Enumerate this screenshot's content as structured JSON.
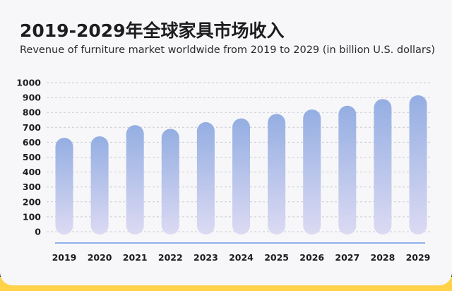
{
  "header": {
    "title": "2019-2029年全球家具市场收入",
    "subtitle": "Revenue of furniture market worldwide from 2019 to 2029 (in billion U.S. dollars)"
  },
  "colors": {
    "bar_top": "#94aee2",
    "bar_bottom": "#dcdaf3",
    "gridline": "#c9ccd6",
    "baseline": "#8fb3ea",
    "accent_orange": "#ff8a1c",
    "accent_yellow": "#ffd24a"
  },
  "chart_data": {
    "type": "bar",
    "categories": [
      "2019",
      "2020",
      "2021",
      "2022",
      "2023",
      "2024",
      "2025",
      "2026",
      "2027",
      "2028",
      "2029"
    ],
    "values": [
      630,
      640,
      715,
      690,
      735,
      760,
      790,
      820,
      845,
      890,
      915
    ],
    "ylim": [
      0,
      1000
    ],
    "yticks": [
      0,
      100,
      200,
      300,
      400,
      500,
      600,
      700,
      800,
      900,
      1000
    ],
    "ytick_labels": [
      "0",
      "100",
      "200",
      "300",
      "400",
      "500",
      "600",
      "700",
      "800",
      "900",
      "1000"
    ],
    "grid": true,
    "title": "2019-2029年全球家具市场收入",
    "subtitle": "Revenue of furniture market worldwide from 2019 to 2029 (in billion U.S. dollars)",
    "xlabel": "",
    "ylabel": ""
  }
}
